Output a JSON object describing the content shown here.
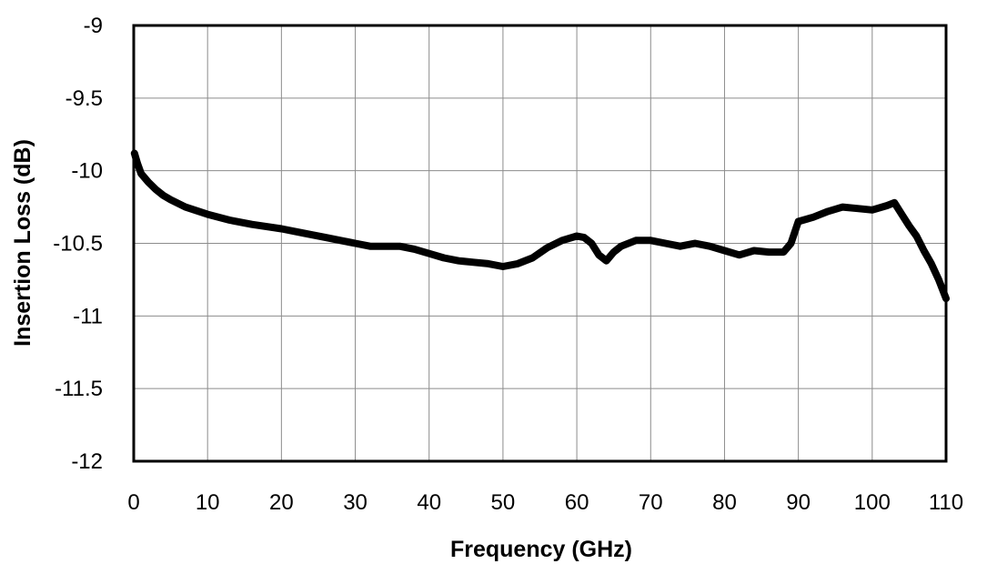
{
  "chart_data": {
    "type": "line",
    "title": "",
    "xlabel": "Frequency (GHz)",
    "ylabel": "Insertion Loss (dB)",
    "xlim": [
      0,
      110
    ],
    "ylim": [
      -12,
      -9
    ],
    "xticks": [
      0,
      10,
      20,
      30,
      40,
      50,
      60,
      70,
      80,
      90,
      100,
      110
    ],
    "xtick_labels": [
      "0",
      "10",
      "20",
      "30",
      "40",
      "50",
      "60",
      "70",
      "80",
      "90",
      "100",
      "110"
    ],
    "yticks": [
      -9,
      -9.5,
      -10,
      -10.5,
      -11,
      -11.5,
      -12
    ],
    "ytick_labels": [
      "-9",
      "-9.5",
      "-10",
      "-10.5",
      "-11",
      "-11.5",
      "-12"
    ],
    "grid": true,
    "legend": "none",
    "line_color": "#000000",
    "series": [
      {
        "x": [
          0.1,
          0.5,
          1,
          2,
          3,
          4,
          5,
          7,
          10,
          13,
          16,
          20,
          23,
          26,
          28,
          30,
          32,
          34,
          36,
          38,
          40,
          42,
          44,
          46,
          48,
          50,
          52,
          54,
          56,
          58,
          60,
          61,
          62,
          63,
          64,
          65,
          66,
          68,
          70,
          72,
          74,
          76,
          78,
          80,
          82,
          84,
          86,
          88,
          89,
          90,
          92,
          94,
          96,
          98,
          100,
          102,
          103,
          104,
          105,
          106,
          107,
          108,
          109,
          110
        ],
        "y": [
          -9.88,
          -9.95,
          -10.02,
          -10.08,
          -10.13,
          -10.17,
          -10.2,
          -10.25,
          -10.3,
          -10.34,
          -10.37,
          -10.4,
          -10.43,
          -10.46,
          -10.48,
          -10.5,
          -10.52,
          -10.52,
          -10.52,
          -10.54,
          -10.57,
          -10.6,
          -10.62,
          -10.63,
          -10.64,
          -10.66,
          -10.64,
          -10.6,
          -10.53,
          -10.48,
          -10.45,
          -10.46,
          -10.5,
          -10.58,
          -10.62,
          -10.56,
          -10.52,
          -10.48,
          -10.48,
          -10.5,
          -10.52,
          -10.5,
          -10.52,
          -10.55,
          -10.58,
          -10.55,
          -10.56,
          -10.56,
          -10.5,
          -10.35,
          -10.32,
          -10.28,
          -10.25,
          -10.26,
          -10.27,
          -10.24,
          -10.22,
          -10.3,
          -10.38,
          -10.45,
          -10.55,
          -10.64,
          -10.75,
          -10.88
        ]
      }
    ]
  }
}
